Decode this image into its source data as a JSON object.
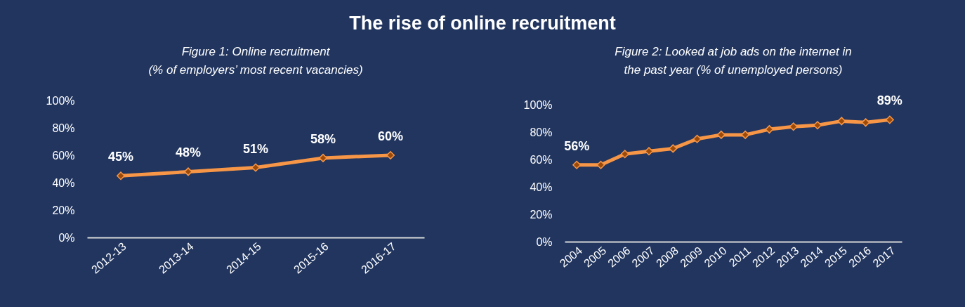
{
  "chart_data": [
    {
      "type": "other",
      "title": "The rise of online recruitment"
    },
    {
      "type": "line",
      "subtitle": "Figure 1: Online recruitment\n(% of employers’ most recent vacancies)",
      "categories": [
        "2012-13",
        "2013-14",
        "2014-15",
        "2015-16",
        "2016-17"
      ],
      "series": [
        {
          "color": "#f79646",
          "values": [
            45,
            48,
            51,
            58,
            60
          ],
          "value_labels": [
            "45%",
            "48%",
            "51%",
            "58%",
            "60%"
          ]
        }
      ],
      "ylim": [
        0,
        100
      ],
      "yticks": [
        {
          "value": 0,
          "label": "0%"
        },
        {
          "value": 20,
          "label": "20%"
        },
        {
          "value": 40,
          "label": "40%"
        },
        {
          "value": 60,
          "label": "60%"
        },
        {
          "value": 80,
          "label": "80%"
        },
        {
          "value": 100,
          "label": "100%"
        }
      ],
      "marker": "diamond",
      "line_style": "solid"
    },
    {
      "type": "line",
      "subtitle": "Figure 2: Looked at job ads on the internet in\nthe past year (% of unemployed persons)",
      "categories": [
        "2004",
        "2005",
        "2006",
        "2007",
        "2008",
        "2009",
        "2010",
        "2011",
        "2012",
        "2013",
        "2014",
        "2015",
        "2016",
        "2017"
      ],
      "series": [
        {
          "color": "#f79646",
          "values": [
            56,
            56,
            64,
            66,
            68,
            75,
            78,
            78,
            82,
            84,
            85,
            88,
            87,
            89
          ],
          "value_labels": [
            "56%",
            null,
            null,
            null,
            null,
            null,
            null,
            null,
            null,
            null,
            null,
            null,
            null,
            "89%"
          ]
        }
      ],
      "ylim": [
        0,
        100
      ],
      "yticks": [
        {
          "value": 0,
          "label": "0%"
        },
        {
          "value": 20,
          "label": "20%"
        },
        {
          "value": 40,
          "label": "40%"
        },
        {
          "value": 60,
          "label": "60%"
        },
        {
          "value": 80,
          "label": "80%"
        },
        {
          "value": 100,
          "label": "100%"
        }
      ],
      "marker": "diamond",
      "line_style": "solid"
    }
  ]
}
